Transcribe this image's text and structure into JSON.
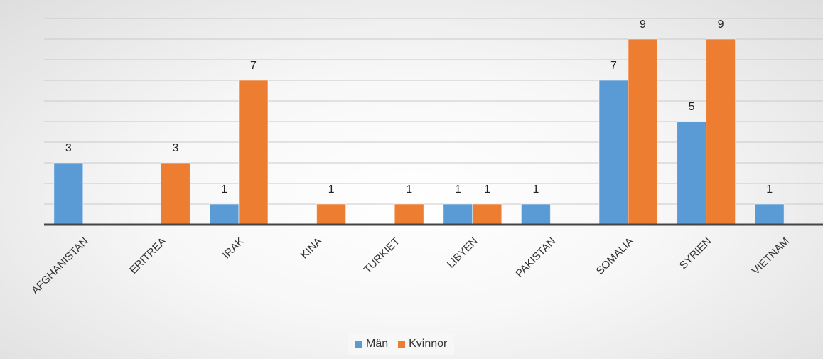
{
  "chart_data": {
    "type": "bar",
    "categories": [
      "AFGHANISTAN",
      "ERITREA",
      "IRAK",
      "KINA",
      "TURKIET",
      "LIBYEN",
      "PAKISTAN",
      "SOMALIA",
      "SYRIEN",
      "VIETNAM"
    ],
    "series": [
      {
        "name": "Män",
        "values": [
          3,
          0,
          1,
          0,
          0,
          1,
          1,
          7,
          5,
          1
        ],
        "color": "#5B9BD5"
      },
      {
        "name": "Kvinnor",
        "values": [
          0,
          3,
          7,
          1,
          1,
          1,
          0,
          9,
          9,
          0
        ],
        "color": "#ED7D31"
      }
    ],
    "ylim": [
      0,
      10
    ],
    "grid": true,
    "legend": "bottom",
    "data_labels": true
  }
}
